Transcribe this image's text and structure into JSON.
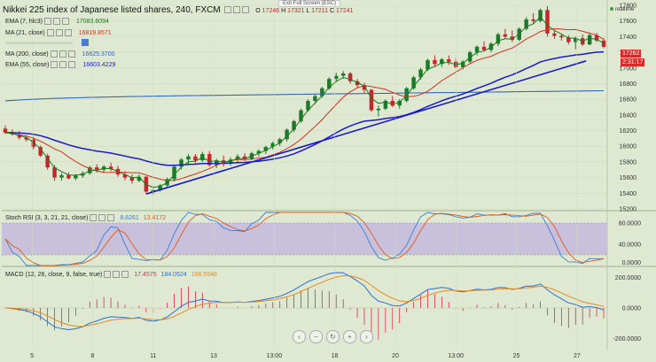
{
  "chart": {
    "title": "Nikkei 225 index of Japanese listed shares, 240, FXCM",
    "ohlc": {
      "o_label": "O",
      "o": "17246",
      "h_label": "H",
      "h": "17321",
      "l_label": "L",
      "l": "17211",
      "c_label": "C",
      "c": "17241"
    },
    "exit_fullscreen": "Exit Full Screen (ESC)",
    "realtime": "realtime"
  },
  "indicators": [
    {
      "label": "EMA (7, hlc3)",
      "value": "17083.6094",
      "color": "#1a7a1a"
    },
    {
      "label": "MA (21, close)",
      "value": "16819.8571",
      "color": "#d0301e"
    },
    {
      "label": "MA (200, close)",
      "value": "16625.3700",
      "color": "#3568b8"
    },
    {
      "label": "EMA (55, close)",
      "value": "16603.4229",
      "color": "#1a1ac8"
    }
  ],
  "price_badges": [
    {
      "value": "17262",
      "color": "#d62b2b"
    },
    {
      "value": "2:31:17",
      "color": "#d62b2b"
    }
  ],
  "stoch": {
    "label": "Stoch RSI (3, 3, 21, 21, close)",
    "k": "8.8261",
    "d": "13.4172",
    "k_color": "#3a7fd5",
    "d_color": "#e05a1e"
  },
  "macd": {
    "label": "MACD (12, 26, close, 9, false, true)",
    "hist": "17.4575",
    "macd": "184.0524",
    "signal": "166.5948",
    "hist_color": "#e0284a",
    "macd_color": "#2a6fd0",
    "signal_color": "#e68a1e"
  },
  "colors": {
    "bg": "#dfe9d2",
    "up": "#1c7a2a",
    "down": "#c8242a",
    "grid": "#cfdcbf",
    "band": "#c9c0dc"
  },
  "chart_data": {
    "type": "candlestick",
    "ylim": [
      15200,
      17800
    ],
    "price_ticks": [
      "17800",
      "17600",
      "17400",
      "17200",
      "17000",
      "16800",
      "16600",
      "16400",
      "16200",
      "16000",
      "15800",
      "15600",
      "15400",
      "15200"
    ],
    "x_ticks": [
      "5",
      "8",
      "11",
      "13",
      "13:00",
      "18",
      "20",
      "13:00",
      "25",
      "27"
    ],
    "candles": [
      [
        16225,
        16265,
        16155,
        16175
      ],
      [
        16175,
        16215,
        16135,
        16150
      ],
      [
        16150,
        16195,
        16085,
        16110
      ],
      [
        16110,
        16140,
        16060,
        16085
      ],
      [
        16085,
        16120,
        15960,
        15990
      ],
      [
        15990,
        16010,
        15860,
        15880
      ],
      [
        15880,
        15905,
        15700,
        15730
      ],
      [
        15730,
        15760,
        15560,
        15600
      ],
      [
        15600,
        15660,
        15560,
        15630
      ],
      [
        15630,
        15665,
        15575,
        15590
      ],
      [
        15590,
        15645,
        15565,
        15625
      ],
      [
        15625,
        15680,
        15595,
        15655
      ],
      [
        15655,
        15750,
        15635,
        15730
      ],
      [
        15730,
        15770,
        15665,
        15700
      ],
      [
        15700,
        15760,
        15660,
        15740
      ],
      [
        15740,
        15790,
        15680,
        15710
      ],
      [
        15710,
        15750,
        15610,
        15640
      ],
      [
        15640,
        15680,
        15565,
        15600
      ],
      [
        15600,
        15640,
        15520,
        15560
      ],
      [
        15560,
        15640,
        15540,
        15610
      ],
      [
        15610,
        15620,
        15400,
        15420
      ],
      [
        15420,
        15470,
        15380,
        15440
      ],
      [
        15440,
        15520,
        15420,
        15500
      ],
      [
        15500,
        15600,
        15470,
        15580
      ],
      [
        15580,
        15760,
        15550,
        15740
      ],
      [
        15740,
        15850,
        15700,
        15830
      ],
      [
        15830,
        15900,
        15770,
        15870
      ],
      [
        15870,
        15900,
        15780,
        15820
      ],
      [
        15820,
        15930,
        15800,
        15900
      ],
      [
        15900,
        15940,
        15740,
        15760
      ],
      [
        15760,
        15840,
        15720,
        15820
      ],
      [
        15820,
        15880,
        15740,
        15780
      ],
      [
        15780,
        15860,
        15750,
        15830
      ],
      [
        15830,
        15900,
        15780,
        15870
      ],
      [
        15870,
        15910,
        15810,
        15840
      ],
      [
        15840,
        15930,
        15820,
        15910
      ],
      [
        15910,
        15960,
        15870,
        15940
      ],
      [
        15940,
        16010,
        15900,
        15990
      ],
      [
        15990,
        16060,
        15960,
        16040
      ],
      [
        16040,
        16110,
        16000,
        16090
      ],
      [
        16090,
        16230,
        16060,
        16210
      ],
      [
        16210,
        16340,
        16180,
        16320
      ],
      [
        16320,
        16480,
        16300,
        16460
      ],
      [
        16460,
        16600,
        16440,
        16580
      ],
      [
        16580,
        16660,
        16540,
        16640
      ],
      [
        16640,
        16760,
        16620,
        16740
      ],
      [
        16740,
        16880,
        16720,
        16860
      ],
      [
        16860,
        16940,
        16820,
        16900
      ],
      [
        16900,
        16960,
        16860,
        16930
      ],
      [
        16930,
        16950,
        16800,
        16830
      ],
      [
        16830,
        16860,
        16740,
        16780
      ],
      [
        16780,
        16810,
        16680,
        16720
      ],
      [
        16720,
        16730,
        16440,
        16460
      ],
      [
        16460,
        16520,
        16380,
        16480
      ],
      [
        16480,
        16600,
        16460,
        16580
      ],
      [
        16580,
        16640,
        16500,
        16520
      ],
      [
        16520,
        16600,
        16480,
        16580
      ],
      [
        16580,
        16760,
        16560,
        16740
      ],
      [
        16740,
        16900,
        16720,
        16880
      ],
      [
        16880,
        17000,
        16850,
        16980
      ],
      [
        16980,
        17120,
        16960,
        17100
      ],
      [
        17100,
        17160,
        17020,
        17050
      ],
      [
        17050,
        17130,
        17010,
        17110
      ],
      [
        17110,
        17160,
        17040,
        17080
      ],
      [
        17080,
        17120,
        16990,
        17010
      ],
      [
        17010,
        17100,
        16980,
        17080
      ],
      [
        17080,
        17220,
        17060,
        17200
      ],
      [
        17200,
        17290,
        17160,
        17270
      ],
      [
        17270,
        17340,
        17210,
        17230
      ],
      [
        17230,
        17330,
        17200,
        17310
      ],
      [
        17310,
        17450,
        17280,
        17430
      ],
      [
        17430,
        17500,
        17370,
        17400
      ],
      [
        17400,
        17480,
        17330,
        17360
      ],
      [
        17360,
        17520,
        17340,
        17500
      ],
      [
        17500,
        17650,
        17480,
        17620
      ],
      [
        17620,
        17700,
        17560,
        17600
      ],
      [
        17600,
        17760,
        17580,
        17740
      ],
      [
        17740,
        17790,
        17400,
        17440
      ],
      [
        17440,
        17480,
        17370,
        17410
      ],
      [
        17410,
        17440,
        17350,
        17390
      ],
      [
        17390,
        17420,
        17300,
        17330
      ],
      [
        17330,
        17400,
        17240,
        17380
      ],
      [
        17380,
        17430,
        17280,
        17300
      ],
      [
        17300,
        17440,
        17290,
        17420
      ],
      [
        17420,
        17450,
        17330,
        17350
      ],
      [
        17350,
        17380,
        17250,
        17270
      ]
    ]
  }
}
